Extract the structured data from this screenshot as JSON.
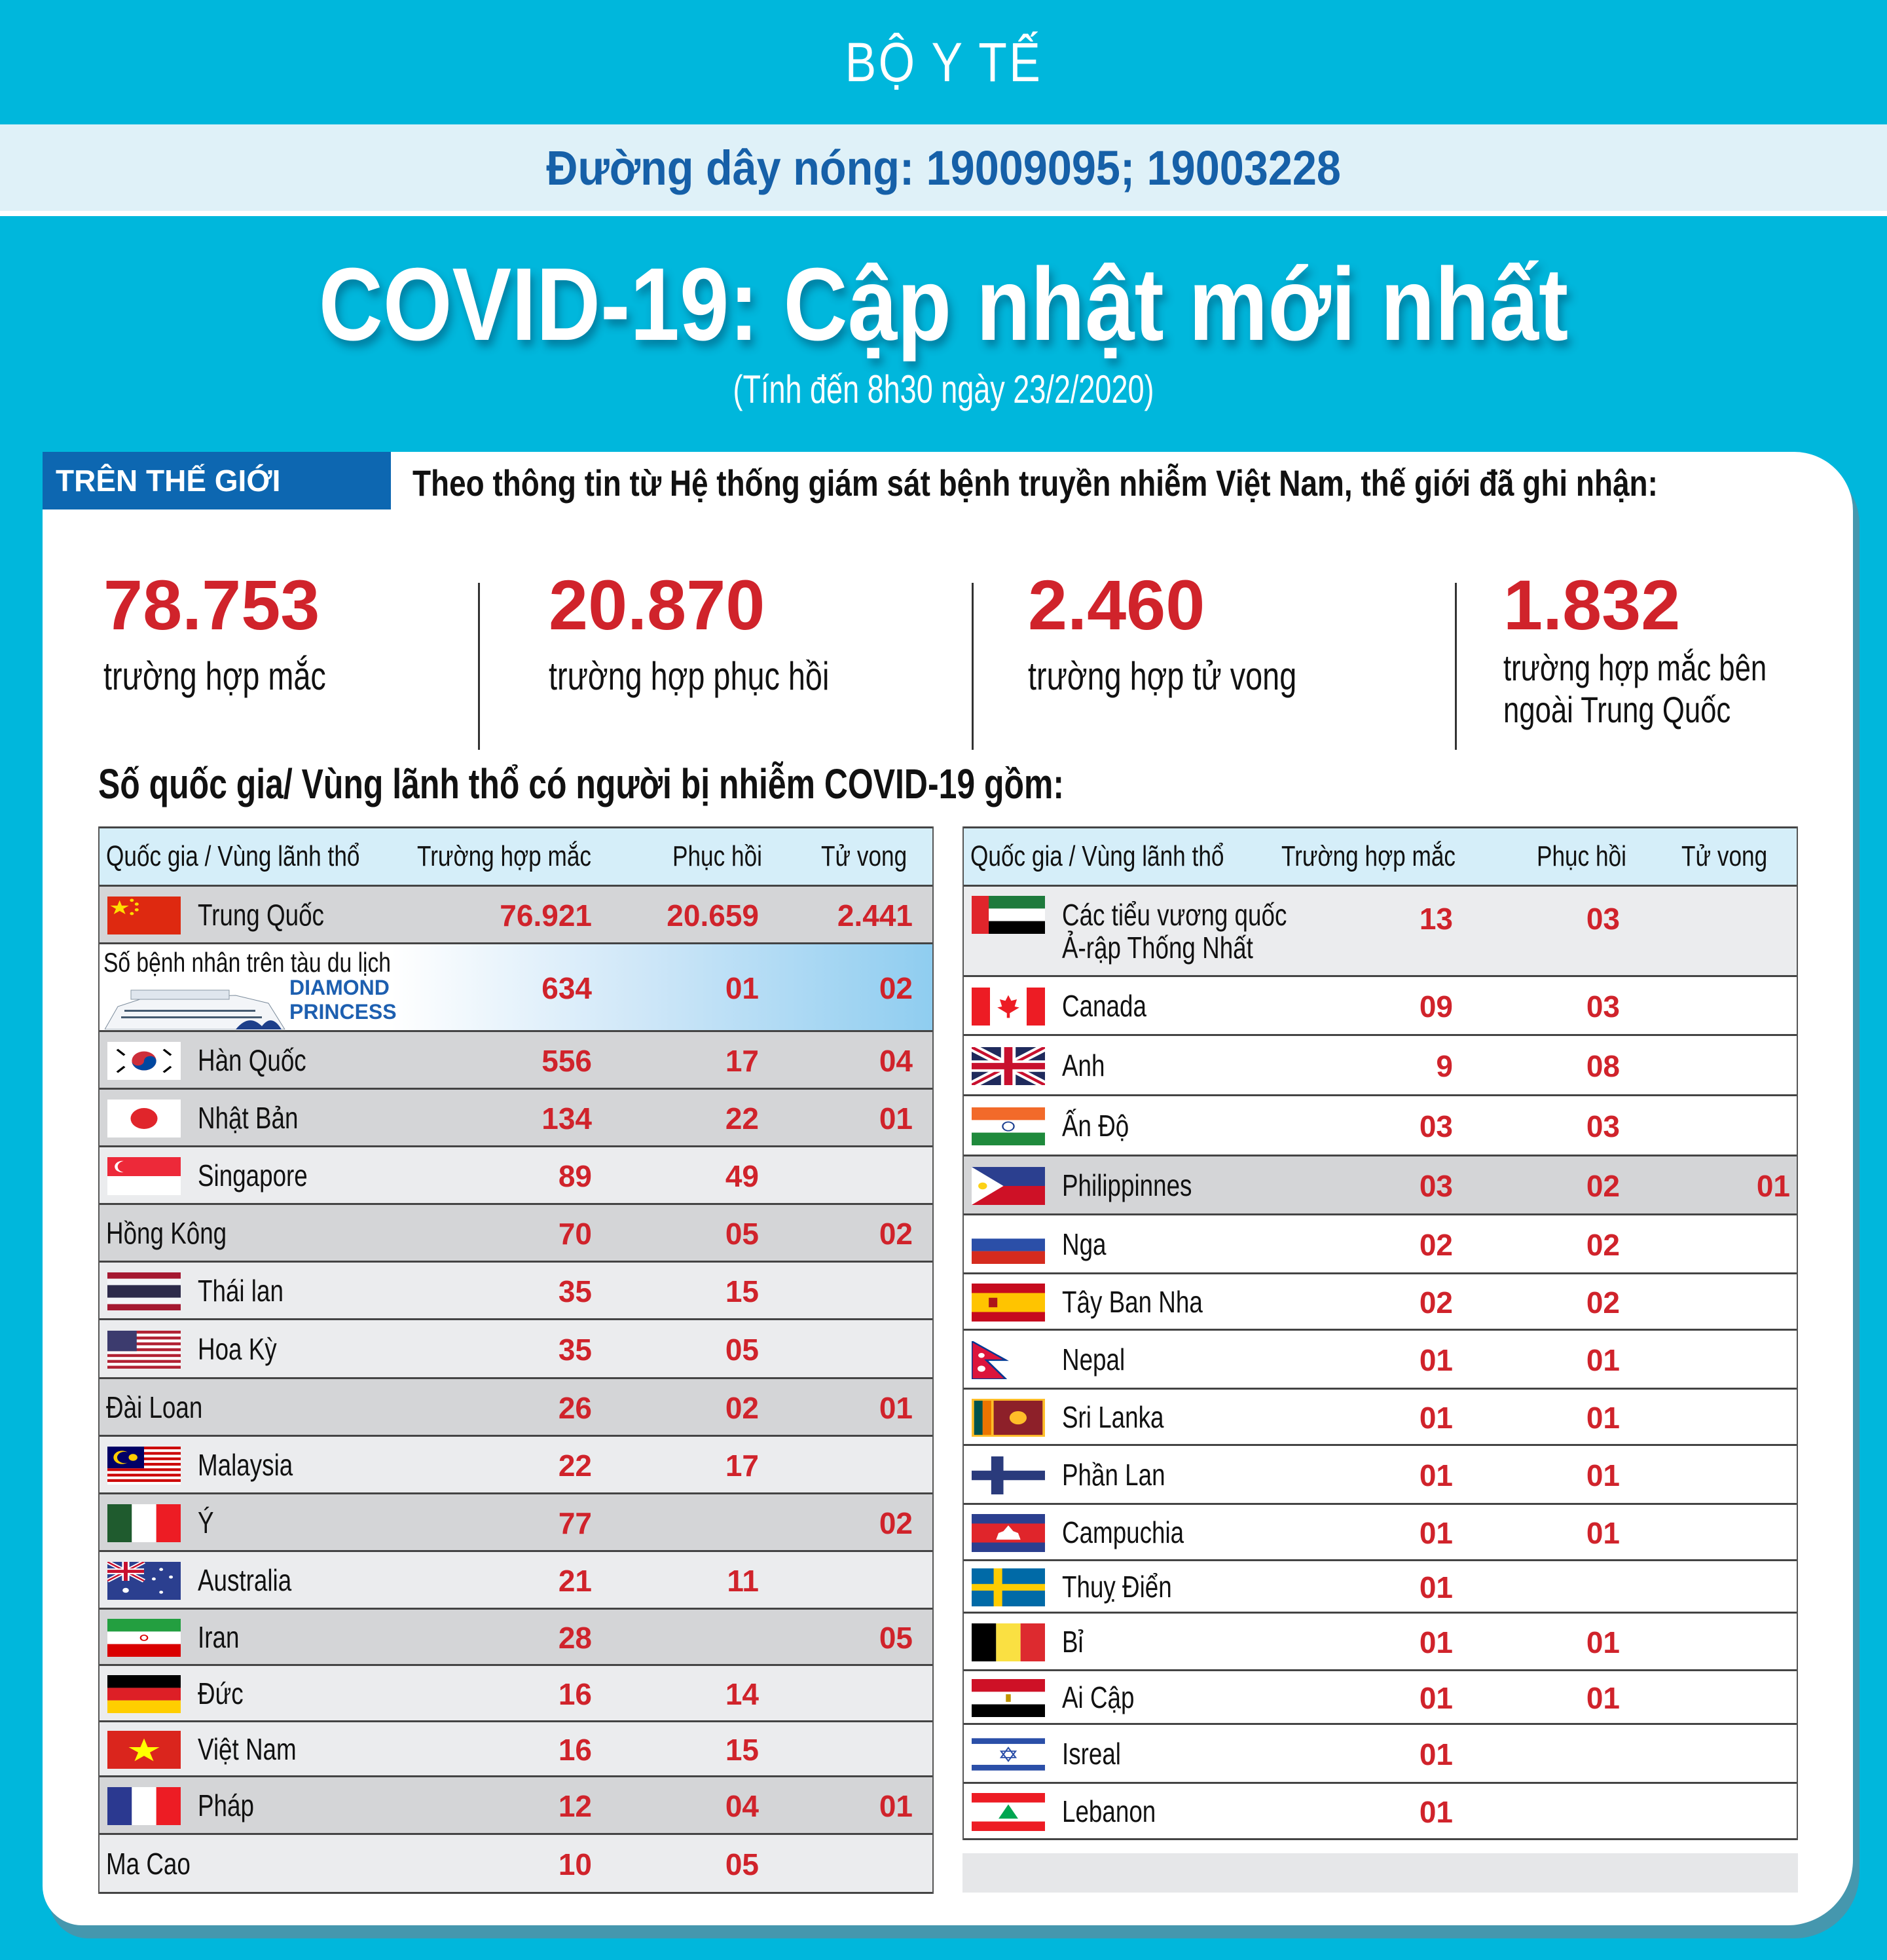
{
  "header": {
    "org": "BỘ Y TẾ",
    "hotline": "Đường dây nóng: 19009095; 19003228",
    "title": "COVID-19: Cập nhật mới nhất",
    "subtitle": "(Tính đến 8h30 ngày 23/2/2020)"
  },
  "section": {
    "badge": "TRÊN THẾ GIỚI",
    "intro": "Theo thông tin từ Hệ thống giám sát bệnh truyền nhiễm Việt Nam, thế giới đã ghi nhận:"
  },
  "stats": [
    {
      "value": "78.753",
      "label": "trường hợp mắc",
      "label2": ""
    },
    {
      "value": "20.870",
      "label": "trường hợp  phục hồi",
      "label2": ""
    },
    {
      "value": "2.460",
      "label": "trường hợp  tử vong",
      "label2": ""
    },
    {
      "value": "1.832",
      "label": "trường hợp  mắc bên",
      "label2": "ngoài Trung Quốc"
    }
  ],
  "countries_heading": "Số quốc gia/ Vùng lãnh thổ có người bị nhiễm COVID-19 gồm:",
  "table_headers": {
    "country": "Quốc gia / Vùng lãnh thổ",
    "cases": "Trường hợp mắc",
    "recovered": "Phục hồi",
    "deaths": "Tử vong"
  },
  "colors": {
    "background": "#00b7dc",
    "hotline": "#1660a8",
    "badge": "#0d67b1",
    "number_red": "#d0232b",
    "header_row": "#d5eef9"
  },
  "left_table": [
    {
      "name": "Trung Quốc",
      "flag": "china-flag",
      "cases": "76.921",
      "recovered": "20.659",
      "deaths": "2.441"
    },
    {
      "name": "Số bệnh nhân trên tàu du lịch",
      "brand": "DIAMOND PRINCESS",
      "flag": "cruise-ship",
      "cases": "634",
      "recovered": "01",
      "deaths": "02"
    },
    {
      "name": "Hàn Quốc",
      "flag": "south-korea-flag",
      "cases": "556",
      "recovered": "17",
      "deaths": "04"
    },
    {
      "name": "Nhật Bản",
      "flag": "japan-flag",
      "cases": "134",
      "recovered": "22",
      "deaths": "01"
    },
    {
      "name": "Singapore",
      "flag": "singapore-flag",
      "cases": "89",
      "recovered": "49",
      "deaths": ""
    },
    {
      "name": "Hồng Kông",
      "flag": "",
      "cases": "70",
      "recovered": "05",
      "deaths": "02"
    },
    {
      "name": "Thái lan",
      "flag": "thailand-flag",
      "cases": "35",
      "recovered": "15",
      "deaths": ""
    },
    {
      "name": "Hoa Kỳ",
      "flag": "usa-flag",
      "cases": "35",
      "recovered": "05",
      "deaths": ""
    },
    {
      "name": "Đài Loan",
      "flag": "",
      "cases": "26",
      "recovered": "02",
      "deaths": "01"
    },
    {
      "name": "Malaysia",
      "flag": "malaysia-flag",
      "cases": "22",
      "recovered": "17",
      "deaths": ""
    },
    {
      "name": "Ý",
      "flag": "italy-flag",
      "cases": "77",
      "recovered": "",
      "deaths": "02"
    },
    {
      "name": "Australia",
      "flag": "australia-flag",
      "cases": "21",
      "recovered": "11",
      "deaths": ""
    },
    {
      "name": "Iran",
      "flag": "iran-flag",
      "cases": "28",
      "recovered": "",
      "deaths": "05"
    },
    {
      "name": "Đức",
      "flag": "germany-flag",
      "cases": "16",
      "recovered": "14",
      "deaths": ""
    },
    {
      "name": "Việt Nam",
      "flag": "vietnam-flag",
      "cases": "16",
      "recovered": "15",
      "deaths": ""
    },
    {
      "name": "Pháp",
      "flag": "france-flag",
      "cases": "12",
      "recovered": "04",
      "deaths": "01"
    },
    {
      "name": "Ma Cao",
      "flag": "",
      "cases": "10",
      "recovered": "05",
      "deaths": ""
    }
  ],
  "right_table": [
    {
      "name": "Các tiểu vương quốc",
      "name2": "Ả-rập Thống Nhất",
      "flag": "uae-flag",
      "cases": "13",
      "recovered": "03",
      "deaths": ""
    },
    {
      "name": "Canada",
      "flag": "canada-flag",
      "cases": "09",
      "recovered": "03",
      "deaths": ""
    },
    {
      "name": "Anh",
      "flag": "uk-flag",
      "cases": "9",
      "recovered": "08",
      "deaths": ""
    },
    {
      "name": "Ấn Độ",
      "flag": "india-flag",
      "cases": "03",
      "recovered": "03",
      "deaths": ""
    },
    {
      "name": "Philippinnes",
      "flag": "philippines-flag",
      "cases": "03",
      "recovered": "02",
      "deaths": "01"
    },
    {
      "name": "Nga",
      "flag": "russia-flag",
      "cases": "02",
      "recovered": "02",
      "deaths": ""
    },
    {
      "name": "Tây Ban Nha",
      "flag": "spain-flag",
      "cases": "02",
      "recovered": "02",
      "deaths": ""
    },
    {
      "name": "Nepal",
      "flag": "nepal-flag",
      "cases": "01",
      "recovered": "01",
      "deaths": ""
    },
    {
      "name": "Sri Lanka",
      "flag": "sri-lanka-flag",
      "cases": "01",
      "recovered": "01",
      "deaths": ""
    },
    {
      "name": "Phần Lan",
      "flag": "finland-flag",
      "cases": "01",
      "recovered": "01",
      "deaths": ""
    },
    {
      "name": "Campuchia",
      "flag": "cambodia-flag",
      "cases": "01",
      "recovered": "01",
      "deaths": ""
    },
    {
      "name": "Thuỵ Điển",
      "flag": "sweden-flag",
      "cases": "01",
      "recovered": "",
      "deaths": ""
    },
    {
      "name": "Bỉ",
      "flag": "belgium-flag",
      "cases": "01",
      "recovered": "01",
      "deaths": ""
    },
    {
      "name": "Ai Cập",
      "flag": "egypt-flag",
      "cases": "01",
      "recovered": "01",
      "deaths": ""
    },
    {
      "name": "Isreal",
      "flag": "israel-flag",
      "cases": "01",
      "recovered": "",
      "deaths": ""
    },
    {
      "name": "Lebanon",
      "flag": "lebanon-flag",
      "cases": "01",
      "recovered": "",
      "deaths": ""
    }
  ]
}
